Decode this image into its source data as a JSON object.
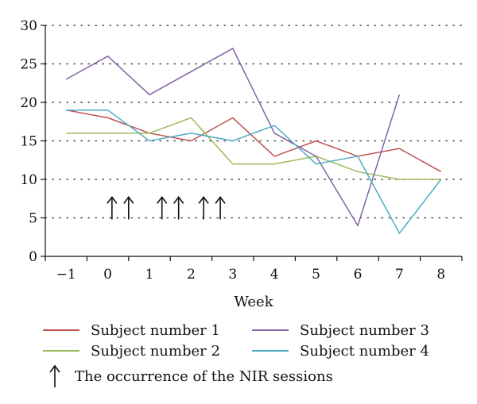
{
  "chart_data": {
    "type": "line",
    "xlabel": "Week",
    "ylabel": "",
    "xlim": [
      -1.5,
      8.5
    ],
    "ylim": [
      0,
      30
    ],
    "x_ticks": [
      -1,
      0,
      1,
      2,
      3,
      4,
      5,
      6,
      7,
      8
    ],
    "x_tick_labels": [
      "−1",
      "0",
      "1",
      "2",
      "3",
      "4",
      "5",
      "6",
      "7",
      "8"
    ],
    "y_ticks": [
      0,
      5,
      10,
      15,
      20,
      25,
      30
    ],
    "y_tick_labels": [
      "0",
      "5",
      "10",
      "15",
      "20",
      "25",
      "30"
    ],
    "grid": "horizontal-dotted",
    "legend_placement": "bottom",
    "series": [
      {
        "name": "Subject number 1",
        "color": "#c0504d",
        "x": [
          -1,
          0,
          1,
          2,
          3,
          4,
          5,
          6,
          7,
          8
        ],
        "values": [
          19,
          18,
          16,
          15,
          18,
          13,
          15,
          13,
          14,
          11
        ]
      },
      {
        "name": "Subject number 2",
        "color": "#9bbb59",
        "x": [
          -1,
          0,
          1,
          2,
          3,
          4,
          5,
          6,
          7,
          8
        ],
        "values": [
          16,
          16,
          16,
          18,
          12,
          12,
          13,
          11,
          10,
          10
        ]
      },
      {
        "name": "Subject number 3",
        "color": "#8064a2",
        "x": [
          -1,
          0,
          1,
          2,
          3,
          4,
          5,
          6,
          7
        ],
        "values": [
          23,
          26,
          21,
          24,
          27,
          16,
          13,
          4,
          21
        ]
      },
      {
        "name": "Subject number 4",
        "color": "#4bacc6",
        "x": [
          -1,
          0,
          1,
          2,
          3,
          4,
          5,
          6,
          7,
          8
        ],
        "values": [
          19,
          19,
          15,
          16,
          15,
          17,
          12,
          13,
          3,
          10
        ]
      }
    ],
    "nir_sessions_weeks": [
      0.1,
      0.5,
      1.3,
      1.7,
      2.3,
      2.7
    ],
    "annotation_legend": "The occurrence of the NIR sessions"
  }
}
